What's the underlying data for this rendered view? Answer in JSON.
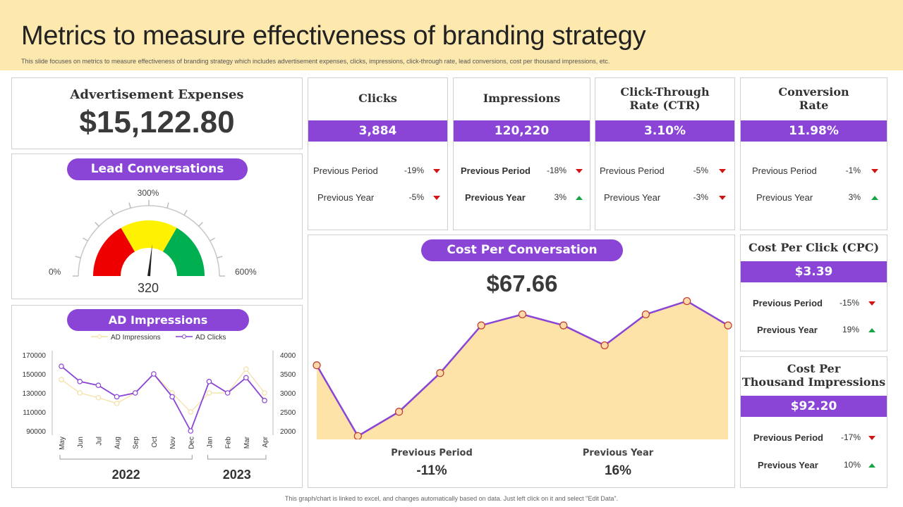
{
  "header": {
    "title": "Metrics to measure effectiveness of branding strategy",
    "subtitle": "This slide focuses on metrics to measure effectiveness of branding strategy which includes advertisement expenses, clicks, impressions, click-through rate, lead conversions, cost per thousand impressions, etc."
  },
  "ad_expenses": {
    "title": "Advertisement Expenses",
    "value": "$15,122.80"
  },
  "lead": {
    "title": "Lead Conversations",
    "gauge_mid_label": "300%",
    "gauge_min_label": "0%",
    "gauge_max_label": "600%",
    "value": "320"
  },
  "kpis": [
    {
      "title": "Clicks",
      "value": "3,884",
      "rows": [
        {
          "label": "Previous Period",
          "change": "-19%",
          "dir": "down"
        },
        {
          "label": "Previous Year",
          "change": "-5%",
          "dir": "down"
        }
      ]
    },
    {
      "title": "Impressions",
      "value": "120,220",
      "rows": [
        {
          "label": "Previous Period",
          "change": "-18%",
          "dir": "down"
        },
        {
          "label": "Previous Year",
          "change": "3%",
          "dir": "up"
        }
      ]
    },
    {
      "title": "Click-Through Rate (CTR)",
      "title_line1": "Click-Through",
      "title_line2": "Rate (CTR)",
      "value": "3.10%",
      "rows": [
        {
          "label": "Previous Period",
          "change": "-5%",
          "dir": "down"
        },
        {
          "label": "Previous Year",
          "change": "-3%",
          "dir": "down"
        }
      ]
    },
    {
      "title": "Conversion Rate",
      "title_line1": "Conversion",
      "title_line2": "Rate",
      "value": "11.98%",
      "rows": [
        {
          "label": "Previous Period",
          "change": "-1%",
          "dir": "down"
        },
        {
          "label": "Previous Year",
          "change": "3%",
          "dir": "up"
        }
      ]
    }
  ],
  "cpc": {
    "title": "Cost Per Click (CPC)",
    "value": "$3.39",
    "rows": [
      {
        "label": "Previous Period",
        "change": "-15%",
        "dir": "down"
      },
      {
        "label": "Previous Year",
        "change": "19%",
        "dir": "up"
      }
    ]
  },
  "cpm": {
    "title_line1": "Cost Per",
    "title_line2": "Thousand Impressions",
    "value": "$92.20",
    "rows": [
      {
        "label": "Previous Period",
        "change": "-17%",
        "dir": "down"
      },
      {
        "label": "Previous Year",
        "change": "10%",
        "dir": "up"
      }
    ]
  },
  "cost_conv": {
    "title": "Cost Per Conversation",
    "value": "$67.66",
    "prev_period_label": "Previous Period",
    "prev_period_value": "-11%",
    "prev_year_label": "Previous Year",
    "prev_year_value": "16%"
  },
  "ad_impressions_title": "AD Impressions",
  "footer": "This graph/chart is linked to excel, and changes automatically based on data. Just left click on it and select \"Edit Data\".",
  "colors": {
    "accent": "#8a44d6",
    "header_bg": "#fde8ad",
    "area_fill": "#fde3a7",
    "down": "#d01515",
    "up": "#17a444"
  },
  "chart_data": [
    {
      "type": "line",
      "title": "AD Impressions",
      "categories": [
        "May",
        "Jun",
        "Jul",
        "Aug",
        "Sep",
        "Oct",
        "Nov",
        "Dec",
        "Jan",
        "Feb",
        "Mar",
        "Apr"
      ],
      "groups": [
        {
          "label": "2022",
          "from": 0,
          "to": 7
        },
        {
          "label": "2023",
          "from": 8,
          "to": 11
        }
      ],
      "y_left_ticks": [
        "170000",
        "150000",
        "130000",
        "110000",
        "90000"
      ],
      "y_left_range": [
        90000,
        170000
      ],
      "y_right_ticks": [
        "4000",
        "3500",
        "3000",
        "2500",
        "2000"
      ],
      "y_right_range": [
        2000,
        4000
      ],
      "series": [
        {
          "name": "AD Impressions",
          "axis": "left",
          "color": "#f5dfa0",
          "values": [
            144000,
            130000,
            125000,
            119000,
            130000,
            150000,
            130000,
            110000,
            130000,
            130000,
            155000,
            130000
          ]
        },
        {
          "name": "AD Clicks",
          "axis": "right",
          "color": "#8a44d6",
          "values": [
            3700,
            3300,
            3200,
            2900,
            3000,
            3500,
            2900,
            2000,
            3300,
            3000,
            3400,
            2800
          ]
        }
      ]
    },
    {
      "type": "area",
      "title": "Cost Per Conversation",
      "values": [
        67,
        3,
        25,
        60,
        103,
        113,
        103,
        85,
        113,
        125,
        103
      ]
    },
    {
      "type": "gauge",
      "title": "Lead Conversations",
      "min": 0,
      "max": 600,
      "value": 320,
      "bands": [
        {
          "color": "#ee0000"
        },
        {
          "color": "#fff200"
        },
        {
          "color": "#00b050"
        }
      ]
    }
  ]
}
